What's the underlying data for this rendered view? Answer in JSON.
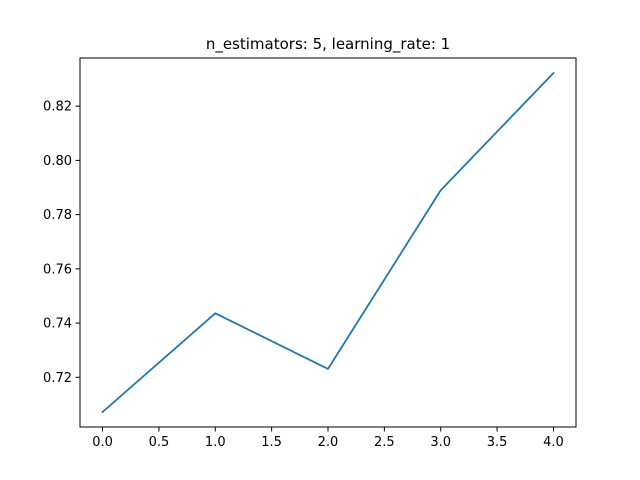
{
  "chart_data": {
    "type": "line",
    "title": "n_estimators: 5, learning_rate: 1",
    "xlabel": "",
    "ylabel": "",
    "x": [
      0,
      1,
      2,
      3,
      4
    ],
    "series": [
      {
        "values": [
          0.7072,
          0.7436,
          0.7231,
          0.789,
          0.8322
        ],
        "color": "#1f77b4"
      }
    ],
    "xlim": [
      -0.2,
      4.2
    ],
    "ylim": [
      0.70167,
      0.83776
    ],
    "x_ticks": [
      0.0,
      0.5,
      1.0,
      1.5,
      2.0,
      2.5,
      3.0,
      3.5,
      4.0
    ],
    "x_tick_labels": [
      "0.0",
      "0.5",
      "1.0",
      "1.5",
      "2.0",
      "2.5",
      "3.0",
      "3.5",
      "4.0"
    ],
    "y_ticks": [
      0.72,
      0.74,
      0.76,
      0.78,
      0.8,
      0.82
    ],
    "y_tick_labels": [
      "0.72",
      "0.74",
      "0.76",
      "0.78",
      "0.80",
      "0.82"
    ],
    "grid": false,
    "legend": "none"
  }
}
